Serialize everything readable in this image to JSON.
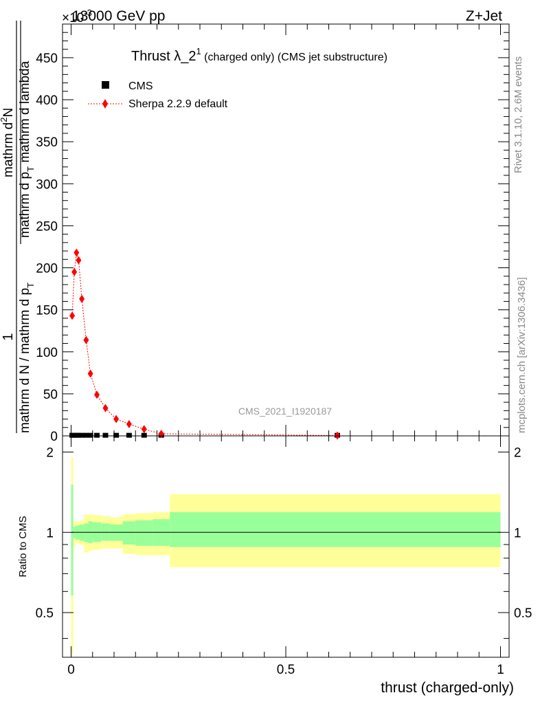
{
  "header": {
    "top_left": "13000 GeV pp",
    "top_right": "Z+Jet",
    "exponent_label": "×10",
    "exponent_sup": "-3"
  },
  "title": {
    "main": "Thrust λ_2",
    "sup": "1",
    "rest": " (charged only) (CMS jet substructure)"
  },
  "side_labels": {
    "rivet": "Rivet 3.1.10,  2.6M events",
    "mcplots": "mcplots.cern.ch [arXiv:1306.3436]"
  },
  "watermark": "CMS_2021_I1920187",
  "ylabel_main": {
    "one": "1",
    "den1": "mathrm d N / mathrm d p",
    "den1_sub": "T",
    "num": "mathrm d",
    "num_sup": "2",
    "num_N": "N",
    "den2": "mathrm d p",
    "den2_sub": "T",
    "den2_rest": " mathrm d lambda"
  },
  "ylabel_ratio": "Ratio to CMS",
  "xlabel": "thrust (charged-only)",
  "colors": {
    "mc": "#ff0000",
    "band_inner": "#99ff99",
    "band_outer": "#ffff99",
    "data": "#000000",
    "side_text": "#888888"
  },
  "chart_data": [
    {
      "type": "line",
      "panel": "main",
      "xlim": [
        -0.02,
        1.02
      ],
      "ylim": [
        0,
        490
      ],
      "ytick_labels": [
        "0",
        "50",
        "100",
        "150",
        "200",
        "250",
        "300",
        "350",
        "400",
        "450"
      ],
      "xtick_labels": [
        "0",
        "0.5",
        "1"
      ],
      "legend_position": "top-left",
      "series": [
        {
          "name": "CMS",
          "marker": "square",
          "x": [
            0.0025,
            0.0075,
            0.0125,
            0.0175,
            0.025,
            0.035,
            0.045,
            0.06,
            0.08,
            0.105,
            0.135,
            0.17,
            0.21,
            0.62
          ],
          "y": [
            0.3,
            0.3,
            0.3,
            0.3,
            0.3,
            0.3,
            0.3,
            0.3,
            0.3,
            0.3,
            0.3,
            0.3,
            0.3,
            0.3
          ]
        },
        {
          "name": "Sherpa 2.2.9 default",
          "marker": "diamond",
          "x": [
            0.0025,
            0.0075,
            0.0125,
            0.0175,
            0.025,
            0.035,
            0.045,
            0.06,
            0.08,
            0.105,
            0.135,
            0.17,
            0.21,
            0.62
          ],
          "y": [
            143,
            195,
            218,
            209,
            163,
            114,
            74,
            49,
            33,
            20,
            14,
            8,
            2.5,
            0.4
          ]
        }
      ]
    },
    {
      "type": "area",
      "panel": "ratio",
      "xlim": [
        -0.02,
        1.02
      ],
      "ylim": [
        0.34,
        2.3
      ],
      "ytick_labels": [
        "0.5",
        "1",
        "2"
      ],
      "reference": 1,
      "bins": [
        0,
        0.005,
        0.01,
        0.02,
        0.03,
        0.04,
        0.05,
        0.07,
        0.09,
        0.12,
        0.15,
        0.19,
        0.23,
        1.0
      ],
      "inner_band_low": [
        0.58,
        0.95,
        0.94,
        0.93,
        0.92,
        0.91,
        0.92,
        0.93,
        0.93,
        0.9,
        0.89,
        0.89,
        0.88
      ],
      "inner_band_high": [
        1.51,
        1.05,
        1.06,
        1.07,
        1.08,
        1.1,
        1.09,
        1.08,
        1.07,
        1.1,
        1.11,
        1.12,
        1.19
      ],
      "outer_band_low": [
        0.35,
        0.88,
        0.91,
        0.9,
        0.84,
        0.85,
        0.86,
        0.87,
        0.87,
        0.83,
        0.82,
        0.82,
        0.74
      ],
      "outer_band_high": [
        1.91,
        1.1,
        1.1,
        1.11,
        1.16,
        1.17,
        1.16,
        1.15,
        1.14,
        1.17,
        1.18,
        1.19,
        1.39
      ]
    }
  ]
}
